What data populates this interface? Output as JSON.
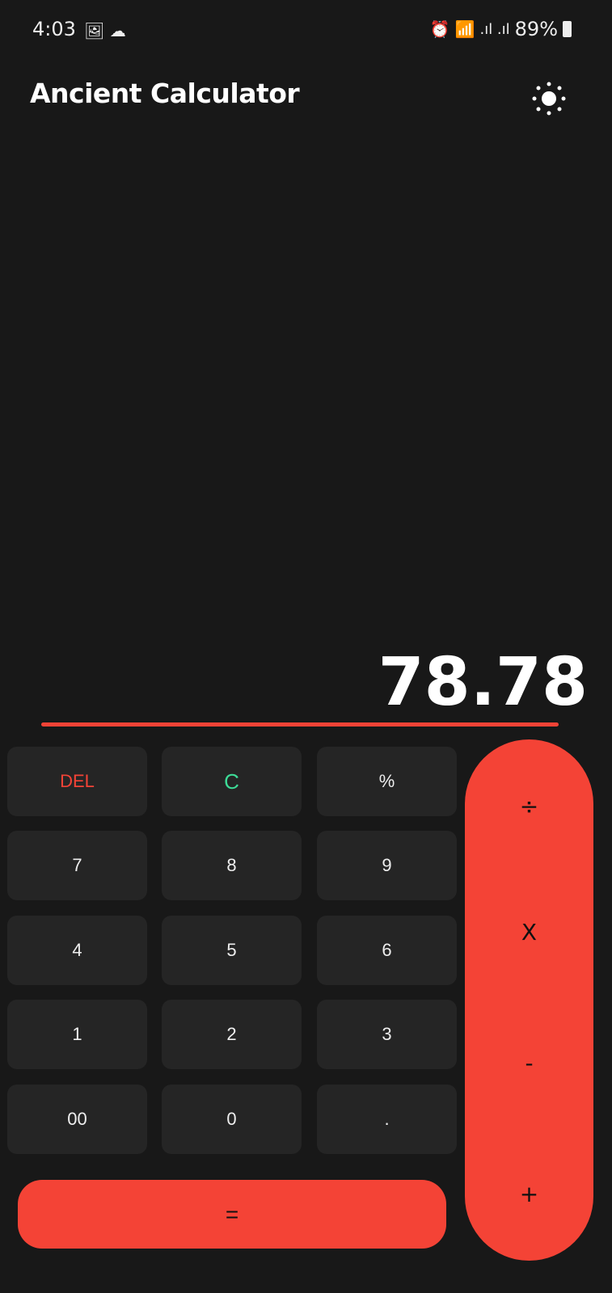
{
  "status_bar": {
    "time": "4:03",
    "battery": "89%",
    "icons": [
      "image-icon",
      "soundcloud-icon",
      "alarm-icon",
      "wifi-icon",
      "signal-icon",
      "signal-icon",
      "battery-icon"
    ]
  },
  "app": {
    "title": "Ancient Calculator",
    "theme_icon": "sun-icon"
  },
  "display": {
    "result": "78.78"
  },
  "colors": {
    "accent": "#f44336",
    "clear": "#3ddc97",
    "background": "#181818",
    "key": "#252525"
  },
  "keys": {
    "del": "DEL",
    "clear": "C",
    "percent": "%",
    "seven": "7",
    "eight": "8",
    "nine": "9",
    "four": "4",
    "five": "5",
    "six": "6",
    "one": "1",
    "two": "2",
    "three": "3",
    "double_zero": "00",
    "zero": "0",
    "dot": ".",
    "equals": "="
  },
  "operators": {
    "divide": "÷",
    "multiply": "X",
    "subtract": "-",
    "add": "+"
  }
}
